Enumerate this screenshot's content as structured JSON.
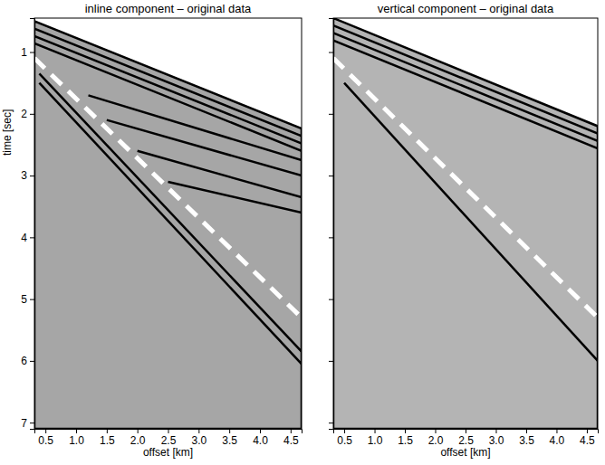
{
  "chart_data": [
    {
      "type": "line",
      "title": "inline component – original data",
      "x_label": "offset [km]",
      "y_label": "time [sec]",
      "xlim": [
        0.32,
        4.68
      ],
      "ylim": [
        0.45,
        7.1
      ],
      "xticks": [
        0.5,
        {
          "value": 1,
          "label": "1.0"
        },
        1.5,
        {
          "value": 2,
          "label": "2.0"
        },
        2.5,
        {
          "value": 3,
          "label": "3.0"
        },
        3.5,
        {
          "value": 4,
          "label": "4.0"
        },
        4.5
      ],
      "yticks": [
        1,
        2,
        3,
        4,
        5,
        6,
        7
      ],
      "grid": false,
      "tick_labels": true,
      "series": [
        {
          "type": "area",
          "color": "#a6a6a6",
          "line_style": "solid",
          "x": [
            0.32,
            4.68
          ],
          "values": [
            0.5,
            2.24
          ]
        },
        {
          "type": "line",
          "color": "#000000",
          "line_style": "solid",
          "x": [
            0.32,
            4.68
          ],
          "values": [
            0.62,
            2.36
          ]
        },
        {
          "type": "line",
          "color": "#000000",
          "line_style": "solid",
          "x": [
            0.32,
            4.68
          ],
          "values": [
            0.74,
            2.48
          ]
        },
        {
          "type": "line",
          "color": "#000000",
          "line_style": "solid",
          "x": [
            0.32,
            4.68
          ],
          "values": [
            0.86,
            2.6
          ]
        },
        {
          "type": "line",
          "color": "#000000",
          "line_style": "solid",
          "x": [
            1.2,
            4.68
          ],
          "values": [
            1.7,
            2.75
          ]
        },
        {
          "type": "line",
          "color": "#000000",
          "line_style": "solid",
          "x": [
            1.5,
            4.68
          ],
          "values": [
            2.1,
            3.0
          ]
        },
        {
          "type": "line",
          "color": "#000000",
          "line_style": "solid",
          "x": [
            2.0,
            4.68
          ],
          "values": [
            2.6,
            3.35
          ]
        },
        {
          "type": "line",
          "color": "#000000",
          "line_style": "solid",
          "x": [
            2.5,
            4.68
          ],
          "values": [
            3.1,
            3.6
          ]
        },
        {
          "type": "line",
          "color": "#000000",
          "line_style": "solid",
          "x": [
            0.4,
            4.68
          ],
          "values": [
            1.35,
            5.85
          ]
        },
        {
          "type": "line",
          "color": "#000000",
          "line_style": "solid",
          "x": [
            0.4,
            4.68
          ],
          "values": [
            1.5,
            6.05
          ]
        },
        {
          "type": "line",
          "color": "#ffffff",
          "line_style": "dashed",
          "x": [
            0.32,
            4.68
          ],
          "values": [
            1.1,
            5.3
          ]
        }
      ]
    },
    {
      "type": "line",
      "title": "vertical component – original data",
      "x_label": "offset [km]",
      "xlim": [
        0.32,
        4.68
      ],
      "ylim": [
        0.45,
        7.1
      ],
      "xticks": [
        0.5,
        {
          "value": 1,
          "label": "1.0"
        },
        1.5,
        {
          "value": 2,
          "label": "2.0"
        },
        2.5,
        {
          "value": 3,
          "label": "3.0"
        },
        3.5,
        {
          "value": 4,
          "label": "4.0"
        },
        4.5
      ],
      "yticks": [
        1,
        2,
        3,
        4,
        5,
        6,
        7
      ],
      "grid": false,
      "tick_labels": "x",
      "series": [
        {
          "type": "area",
          "color": "#b4b4b4",
          "line_style": "solid",
          "x": [
            0.32,
            4.68
          ],
          "values": [
            0.45,
            2.2
          ]
        },
        {
          "type": "line",
          "color": "#000000",
          "line_style": "solid",
          "x": [
            0.32,
            4.68
          ],
          "values": [
            0.57,
            2.32
          ]
        },
        {
          "type": "line",
          "color": "#000000",
          "line_style": "solid",
          "x": [
            0.32,
            4.68
          ],
          "values": [
            0.69,
            2.44
          ]
        },
        {
          "type": "line",
          "color": "#000000",
          "line_style": "solid",
          "x": [
            0.32,
            4.68
          ],
          "values": [
            0.81,
            2.56
          ]
        },
        {
          "type": "line",
          "color": "#000000",
          "line_style": "solid",
          "x": [
            0.5,
            4.68
          ],
          "values": [
            1.5,
            6.0
          ]
        },
        {
          "type": "line",
          "color": "#ffffff",
          "line_style": "dashed",
          "x": [
            0.32,
            4.68
          ],
          "values": [
            1.1,
            5.3
          ]
        }
      ]
    }
  ]
}
